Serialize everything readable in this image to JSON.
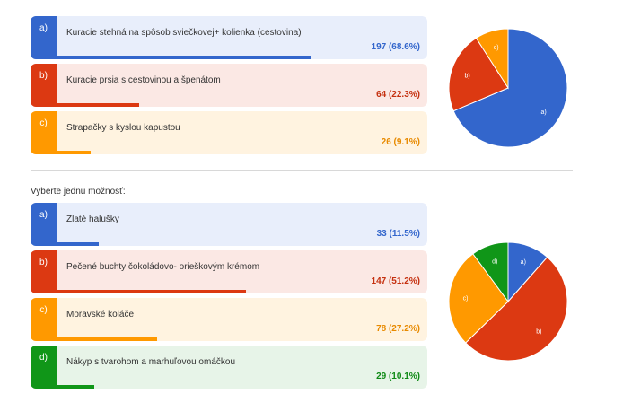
{
  "question2": {
    "prompt": "Vyberte jednu možnosť:"
  },
  "chart_data": [
    {
      "type": "pie",
      "categories": [
        "a)",
        "b)",
        "c)"
      ],
      "labels": [
        "Kuracie stehná na spôsob sviečkovej+ kolienka (cestovina)",
        "Kuracie prsia s cestovinou a špenátom",
        "Strapačky s kyslou kapustou"
      ],
      "values": [
        197,
        64,
        26
      ],
      "percent_labels": [
        "197 (68.6%)",
        "64 (22.3%)",
        "26 (9.1%)"
      ],
      "fractions": [
        0.686,
        0.223,
        0.091
      ],
      "colors": [
        "#3366cc",
        "#dc3912",
        "#ff9900"
      ],
      "tints": [
        "#e8eefb",
        "#fbe8e4",
        "#fff3e0"
      ],
      "text_colors": [
        "#3366cc",
        "#c5300f",
        "#e88a00"
      ]
    },
    {
      "type": "pie",
      "categories": [
        "a)",
        "b)",
        "c)",
        "d)"
      ],
      "labels": [
        "Zlaté halušky",
        "Pečené buchty čokoládovo- orieškovým krémom",
        "Moravské koláče",
        "Nákyp s tvarohom a marhuľovou omáčkou"
      ],
      "values": [
        33,
        147,
        78,
        29
      ],
      "percent_labels": [
        "33 (11.5%)",
        "147 (51.2%)",
        "78 (27.2%)",
        "29 (10.1%)"
      ],
      "fractions": [
        0.115,
        0.512,
        0.272,
        0.101
      ],
      "colors": [
        "#3366cc",
        "#dc3912",
        "#ff9900",
        "#109618"
      ],
      "tints": [
        "#e8eefb",
        "#fbe8e4",
        "#fff3e0",
        "#e7f4e8"
      ],
      "text_colors": [
        "#3366cc",
        "#c5300f",
        "#e88a00",
        "#0f8a16"
      ]
    }
  ]
}
